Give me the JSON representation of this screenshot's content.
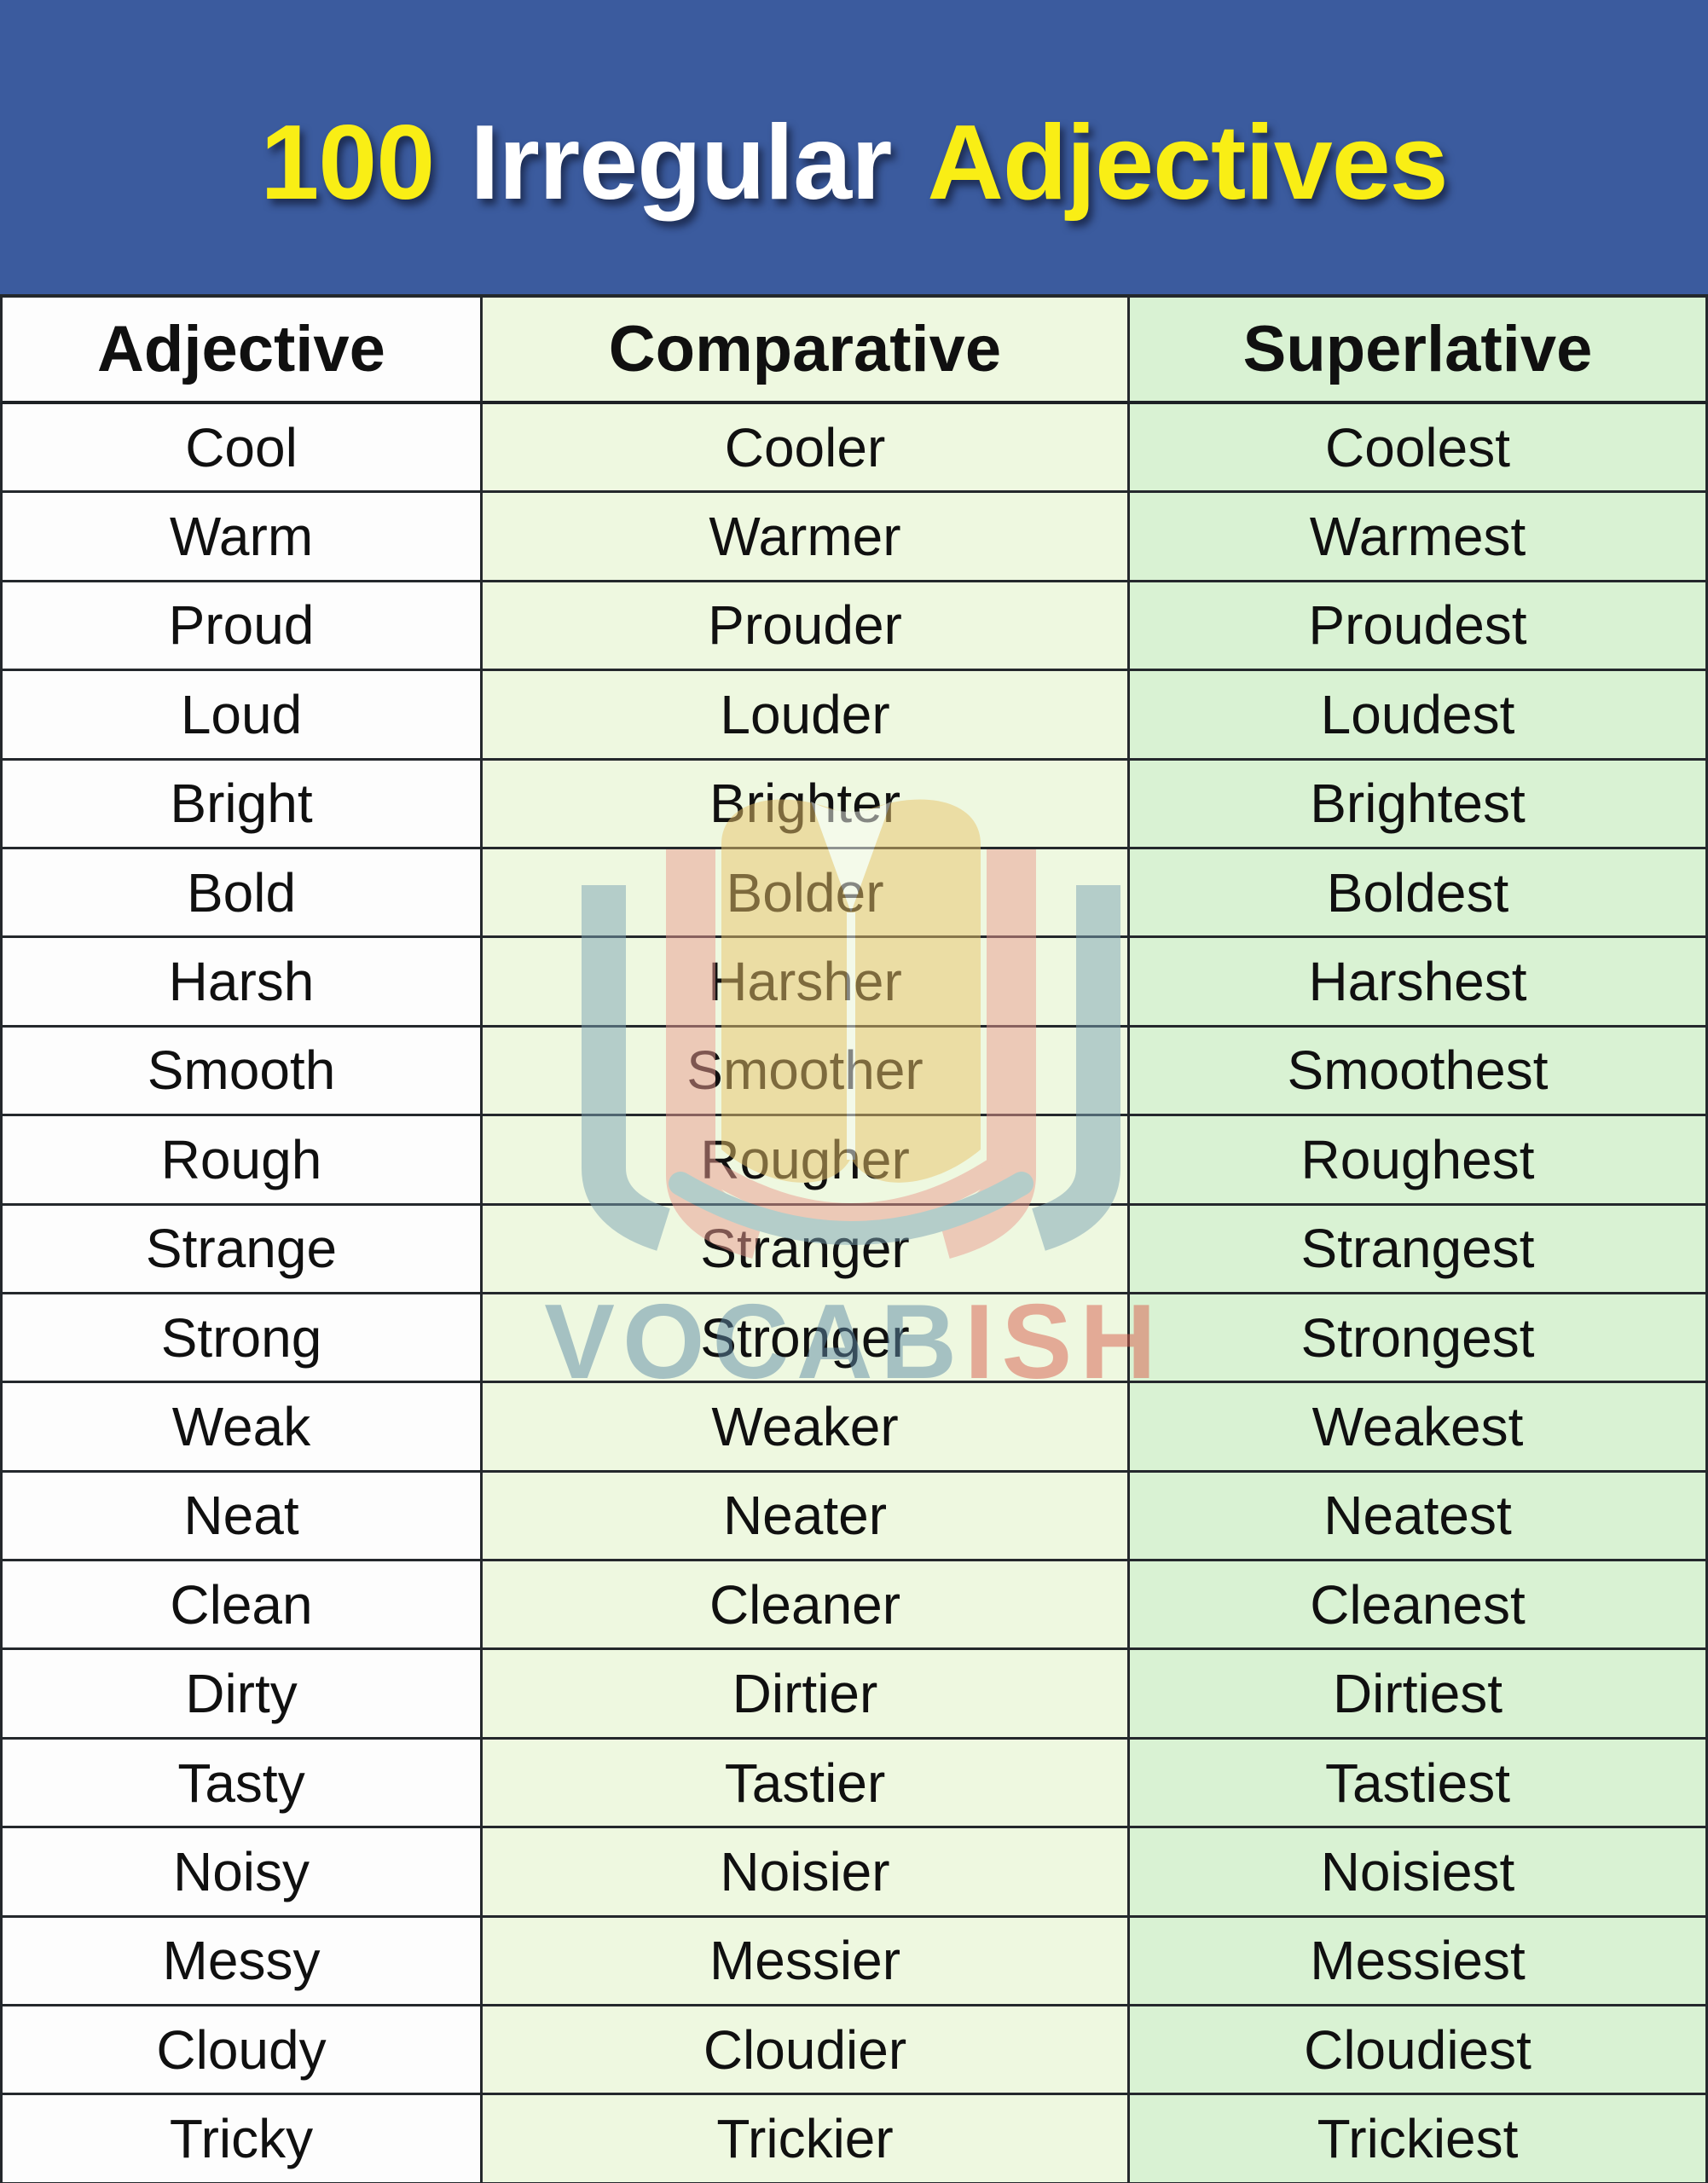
{
  "title": {
    "part1": "100",
    "part2": "Irregular",
    "part3": "Adjectives"
  },
  "watermark": {
    "part1": "VOCAB",
    "part2": "ISH"
  },
  "colors": {
    "banner_bg": "#3b5b9e",
    "title_yellow": "#f9ee15",
    "title_white": "#ffffff",
    "col_adjective_bg": "#fdfdfd",
    "col_comparative_bg": "#eef8e0",
    "col_superlative_bg": "#d9f2d3",
    "grid_border": "#24282c",
    "logo_blue_gray": "#7ba3b4",
    "logo_pink": "#eb9b90",
    "logo_tan": "#e9c36a",
    "wordmark_blue": "#5f8ba6",
    "wordmark_red": "#d95f4e"
  },
  "table": {
    "columns": [
      "Adjective",
      "Comparative",
      "Superlative"
    ],
    "rows": [
      [
        "Cool",
        "Cooler",
        "Coolest"
      ],
      [
        "Warm",
        "Warmer",
        "Warmest"
      ],
      [
        "Proud",
        "Prouder",
        "Proudest"
      ],
      [
        "Loud",
        "Louder",
        "Loudest"
      ],
      [
        "Bright",
        "Brighter",
        "Brightest"
      ],
      [
        "Bold",
        "Bolder",
        "Boldest"
      ],
      [
        "Harsh",
        "Harsher",
        "Harshest"
      ],
      [
        "Smooth",
        "Smoother",
        "Smoothest"
      ],
      [
        "Rough",
        "Rougher",
        "Roughest"
      ],
      [
        "Strange",
        "Stranger",
        "Strangest"
      ],
      [
        "Strong",
        "Stronger",
        "Strongest"
      ],
      [
        "Weak",
        "Weaker",
        "Weakest"
      ],
      [
        "Neat",
        "Neater",
        "Neatest"
      ],
      [
        "Clean",
        "Cleaner",
        "Cleanest"
      ],
      [
        "Dirty",
        "Dirtier",
        "Dirtiest"
      ],
      [
        "Tasty",
        "Tastier",
        "Tastiest"
      ],
      [
        "Noisy",
        "Noisier",
        "Noisiest"
      ],
      [
        "Messy",
        "Messier",
        "Messiest"
      ],
      [
        "Cloudy",
        "Cloudier",
        "Cloudiest"
      ],
      [
        "Tricky",
        "Trickier",
        "Trickiest"
      ]
    ]
  }
}
